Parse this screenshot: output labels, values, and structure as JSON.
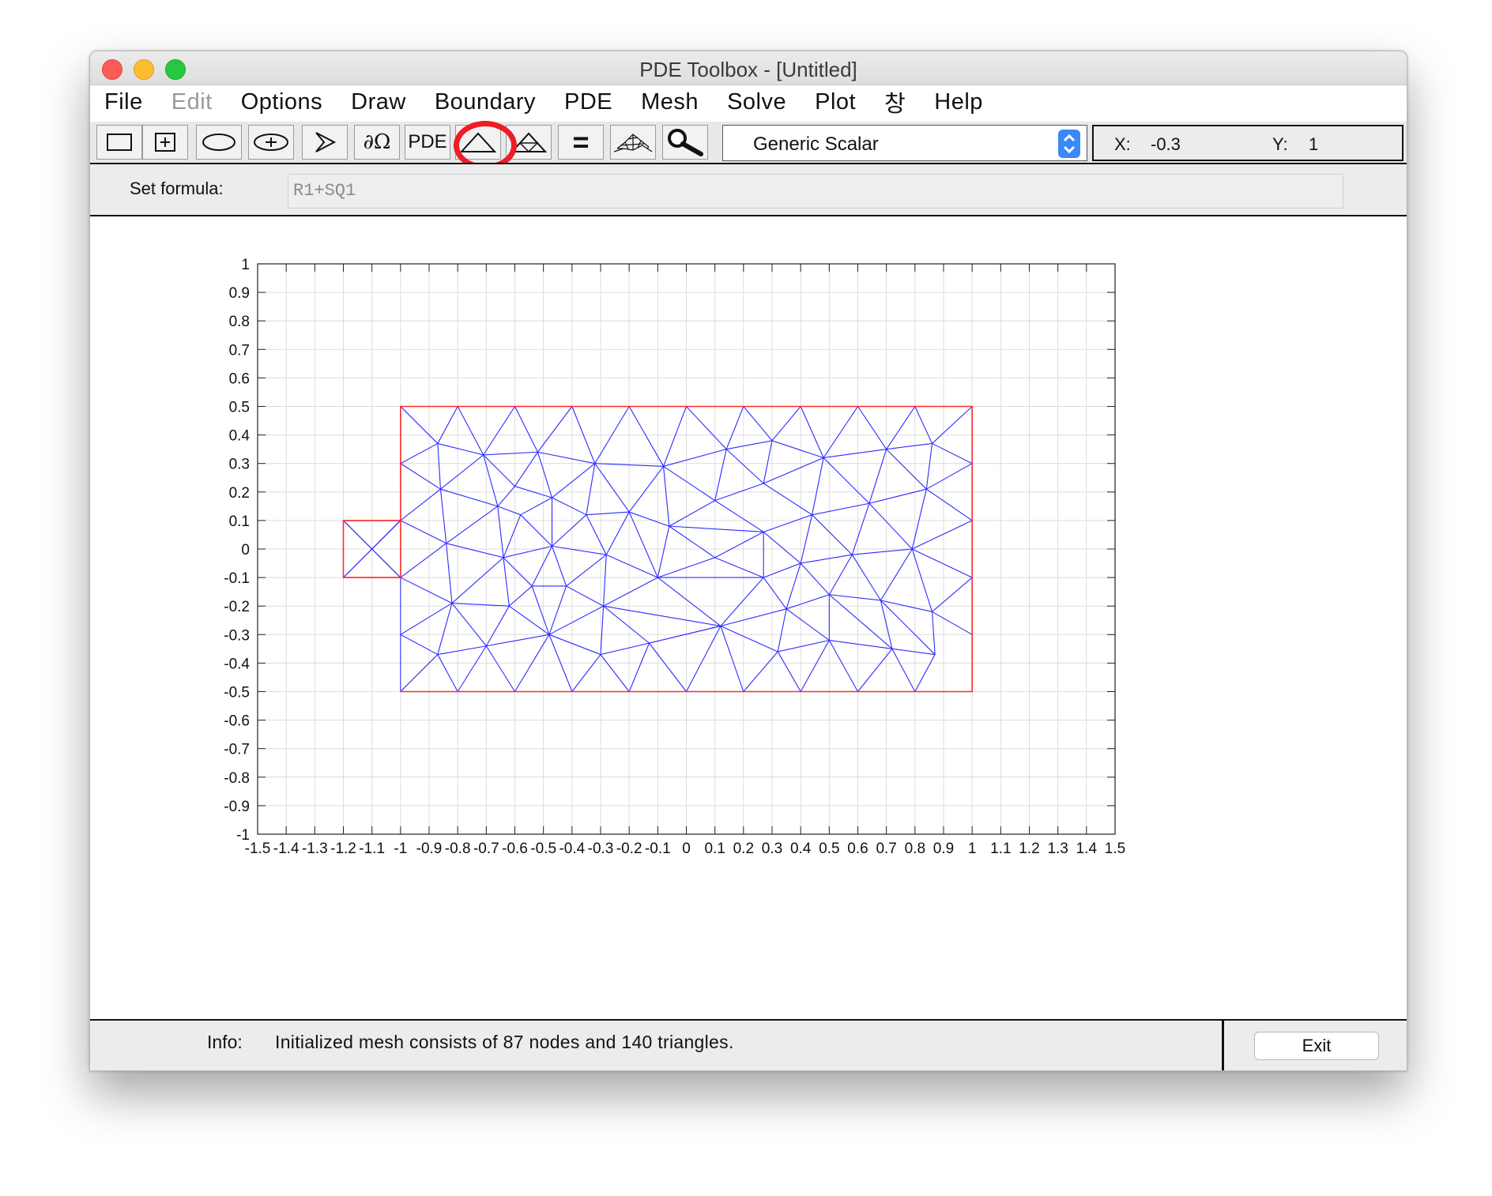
{
  "window": {
    "title": "PDE Toolbox - [Untitled]"
  },
  "menubar": {
    "items": [
      {
        "label": "File",
        "enabled": true
      },
      {
        "label": "Edit",
        "enabled": false
      },
      {
        "label": "Options",
        "enabled": true
      },
      {
        "label": "Draw",
        "enabled": true
      },
      {
        "label": "Boundary",
        "enabled": true
      },
      {
        "label": "PDE",
        "enabled": true
      },
      {
        "label": "Mesh",
        "enabled": true
      },
      {
        "label": "Solve",
        "enabled": true
      },
      {
        "label": "Plot",
        "enabled": true
      },
      {
        "label": "창",
        "enabled": true
      },
      {
        "label": "Help",
        "enabled": true
      }
    ]
  },
  "toolbar": {
    "buttons": [
      {
        "name": "rectangle-icon"
      },
      {
        "name": "centered-rectangle-icon"
      },
      {
        "name": "ellipse-icon"
      },
      {
        "name": "centered-ellipse-icon"
      },
      {
        "name": "polygon-icon"
      },
      {
        "name": "boundary-mode-icon",
        "label": "∂Ω"
      },
      {
        "name": "pde-specification-icon",
        "label": "PDE"
      },
      {
        "name": "initialize-mesh-icon"
      },
      {
        "name": "refine-mesh-icon"
      },
      {
        "name": "solve-pde-icon",
        "label": "="
      },
      {
        "name": "plot-solution-icon"
      },
      {
        "name": "zoom-icon"
      }
    ],
    "highlight_color": "#ee1c25",
    "app_mode": "Generic Scalar",
    "coords": {
      "x_label": "X:",
      "x_value": "-0.3",
      "y_label": "Y:",
      "y_value": "1"
    }
  },
  "formula": {
    "label": "Set formula:",
    "value": "R1+SQ1"
  },
  "status": {
    "info_label": "Info:",
    "info_text": "Initialized mesh consists of 87 nodes and 140 triangles.",
    "exit_label": "Exit"
  },
  "chart_data": {
    "type": "mesh",
    "xlim": [
      -1.5,
      1.5
    ],
    "ylim": [
      -1,
      1
    ],
    "grid": true,
    "xticks": [
      "-1.5",
      "-1.4",
      "-1.3",
      "-1.2",
      "-1.1",
      "-1",
      "-0.9",
      "-0.8",
      "-0.7",
      "-0.6",
      "-0.5",
      "-0.4",
      "-0.3",
      "-0.2",
      "-0.1",
      "0",
      "0.1",
      "0.2",
      "0.3",
      "0.4",
      "0.5",
      "0.6",
      "0.7",
      "0.8",
      "0.9",
      "1",
      "1.1",
      "1.2",
      "1.3",
      "1.4",
      "1.5"
    ],
    "yticks": [
      "1",
      "0.9",
      "0.8",
      "0.7",
      "0.6",
      "0.5",
      "0.4",
      "0.3",
      "0.2",
      "0.1",
      "0",
      "-0.1",
      "-0.2",
      "-0.3",
      "-0.4",
      "-0.5",
      "-0.6",
      "-0.7",
      "-0.8",
      "-0.9",
      "-1"
    ],
    "mesh_color": "#2c2cff",
    "boundary_color": "#ff2a2a",
    "boundary": [
      [
        [
          -1.0,
          -0.5
        ],
        [
          1.0,
          -0.5
        ],
        [
          1.0,
          0.5
        ],
        [
          -1.0,
          0.5
        ],
        [
          -1.0,
          -0.1
        ],
        [
          -1.2,
          -0.1
        ],
        [
          -1.2,
          0.1
        ],
        [
          -1.0,
          0.1
        ],
        [
          -1.0,
          0.5
        ]
      ]
    ],
    "nodes": [
      [
        -1.0,
        0.5
      ],
      [
        -0.8,
        0.5
      ],
      [
        -0.6,
        0.5
      ],
      [
        -0.4,
        0.5
      ],
      [
        -0.2,
        0.5
      ],
      [
        0.0,
        0.5
      ],
      [
        0.2,
        0.5
      ],
      [
        0.4,
        0.5
      ],
      [
        0.6,
        0.5
      ],
      [
        0.8,
        0.5
      ],
      [
        1.0,
        0.5
      ],
      [
        -1.0,
        -0.5
      ],
      [
        -0.8,
        -0.5
      ],
      [
        -0.6,
        -0.5
      ],
      [
        -0.4,
        -0.5
      ],
      [
        -0.2,
        -0.5
      ],
      [
        0.0,
        -0.5
      ],
      [
        0.2,
        -0.5
      ],
      [
        0.4,
        -0.5
      ],
      [
        0.6,
        -0.5
      ],
      [
        0.8,
        -0.5
      ],
      [
        1.0,
        -0.5
      ],
      [
        -1.0,
        0.3
      ],
      [
        -1.0,
        0.1
      ],
      [
        -1.0,
        -0.1
      ],
      [
        -1.0,
        -0.3
      ],
      [
        1.0,
        0.3
      ],
      [
        1.0,
        0.1
      ],
      [
        1.0,
        -0.1
      ],
      [
        1.0,
        -0.3
      ],
      [
        -1.2,
        0.1
      ],
      [
        -1.2,
        -0.1
      ],
      [
        -1.1,
        0.0
      ],
      [
        -0.87,
        0.37
      ],
      [
        -0.71,
        0.33
      ],
      [
        -0.52,
        0.34
      ],
      [
        -0.32,
        0.3
      ],
      [
        -0.08,
        0.29
      ],
      [
        0.14,
        0.35
      ],
      [
        0.3,
        0.38
      ],
      [
        0.48,
        0.32
      ],
      [
        0.7,
        0.35
      ],
      [
        0.86,
        0.37
      ],
      [
        -0.86,
        0.21
      ],
      [
        -0.66,
        0.15
      ],
      [
        -0.6,
        0.22
      ],
      [
        -0.47,
        0.18
      ],
      [
        -0.58,
        0.12
      ],
      [
        -0.35,
        0.12
      ],
      [
        -0.2,
        0.13
      ],
      [
        -0.06,
        0.08
      ],
      [
        0.1,
        0.17
      ],
      [
        0.27,
        0.23
      ],
      [
        0.44,
        0.12
      ],
      [
        0.64,
        0.16
      ],
      [
        0.84,
        0.21
      ],
      [
        -0.84,
        0.02
      ],
      [
        -0.64,
        -0.03
      ],
      [
        -0.47,
        0.01
      ],
      [
        -0.28,
        -0.02
      ],
      [
        -0.1,
        -0.1
      ],
      [
        0.1,
        -0.03
      ],
      [
        0.27,
        -0.1
      ],
      [
        0.27,
        0.06
      ],
      [
        0.4,
        -0.05
      ],
      [
        0.58,
        -0.02
      ],
      [
        0.79,
        0.0
      ],
      [
        -0.54,
        -0.13
      ],
      [
        -0.42,
        -0.13
      ],
      [
        -0.62,
        -0.2
      ],
      [
        -0.82,
        -0.19
      ],
      [
        -0.29,
        -0.2
      ],
      [
        0.12,
        -0.27
      ],
      [
        0.35,
        -0.21
      ],
      [
        0.5,
        -0.16
      ],
      [
        0.68,
        -0.18
      ],
      [
        0.86,
        -0.22
      ],
      [
        -0.87,
        -0.37
      ],
      [
        -0.7,
        -0.34
      ],
      [
        -0.48,
        -0.3
      ],
      [
        -0.3,
        -0.37
      ],
      [
        -0.13,
        -0.33
      ],
      [
        0.32,
        -0.36
      ],
      [
        0.5,
        -0.32
      ],
      [
        0.72,
        -0.35
      ],
      [
        0.87,
        -0.37
      ]
    ],
    "edges": [
      [
        0,
        33
      ],
      [
        1,
        33
      ],
      [
        1,
        34
      ],
      [
        2,
        34
      ],
      [
        2,
        35
      ],
      [
        3,
        35
      ],
      [
        3,
        36
      ],
      [
        4,
        36
      ],
      [
        4,
        37
      ],
      [
        5,
        37
      ],
      [
        5,
        38
      ],
      [
        6,
        38
      ],
      [
        6,
        39
      ],
      [
        7,
        39
      ],
      [
        7,
        40
      ],
      [
        8,
        40
      ],
      [
        8,
        41
      ],
      [
        9,
        41
      ],
      [
        9,
        42
      ],
      [
        10,
        42
      ],
      [
        10,
        26
      ],
      [
        42,
        26
      ],
      [
        42,
        41
      ],
      [
        41,
        40
      ],
      [
        40,
        39
      ],
      [
        39,
        38
      ],
      [
        38,
        37
      ],
      [
        37,
        36
      ],
      [
        36,
        35
      ],
      [
        35,
        34
      ],
      [
        34,
        33
      ],
      [
        33,
        22
      ],
      [
        22,
        43
      ],
      [
        33,
        43
      ],
      [
        43,
        34
      ],
      [
        43,
        44
      ],
      [
        34,
        44
      ],
      [
        34,
        45
      ],
      [
        35,
        45
      ],
      [
        45,
        44
      ],
      [
        45,
        46
      ],
      [
        35,
        46
      ],
      [
        46,
        36
      ],
      [
        46,
        47
      ],
      [
        47,
        44
      ],
      [
        46,
        48
      ],
      [
        36,
        48
      ],
      [
        48,
        49
      ],
      [
        36,
        49
      ],
      [
        49,
        37
      ],
      [
        37,
        50
      ],
      [
        49,
        50
      ],
      [
        50,
        51
      ],
      [
        37,
        51
      ],
      [
        51,
        38
      ],
      [
        51,
        52
      ],
      [
        38,
        52
      ],
      [
        52,
        39
      ],
      [
        52,
        40
      ],
      [
        52,
        53
      ],
      [
        40,
        53
      ],
      [
        53,
        54
      ],
      [
        40,
        54
      ],
      [
        54,
        41
      ],
      [
        54,
        55
      ],
      [
        41,
        55
      ],
      [
        55,
        42
      ],
      [
        55,
        26
      ],
      [
        26,
        27
      ],
      [
        55,
        27
      ],
      [
        55,
        66
      ],
      [
        27,
        66
      ],
      [
        66,
        54
      ],
      [
        66,
        65
      ],
      [
        65,
        54
      ],
      [
        65,
        53
      ],
      [
        65,
        64
      ],
      [
        64,
        53
      ],
      [
        64,
        63
      ],
      [
        63,
        53
      ],
      [
        63,
        51
      ],
      [
        63,
        50
      ],
      [
        63,
        61
      ],
      [
        61,
        50
      ],
      [
        61,
        62
      ],
      [
        62,
        64
      ],
      [
        62,
        63
      ],
      [
        61,
        60
      ],
      [
        60,
        50
      ],
      [
        60,
        49
      ],
      [
        60,
        59
      ],
      [
        59,
        49
      ],
      [
        59,
        48
      ],
      [
        59,
        58
      ],
      [
        58,
        48
      ],
      [
        58,
        46
      ],
      [
        58,
        47
      ],
      [
        47,
        57
      ],
      [
        57,
        58
      ],
      [
        57,
        44
      ],
      [
        57,
        56
      ],
      [
        56,
        44
      ],
      [
        56,
        43
      ],
      [
        56,
        23
      ],
      [
        23,
        43
      ],
      [
        23,
        22
      ],
      [
        23,
        32
      ],
      [
        32,
        30
      ],
      [
        32,
        31
      ],
      [
        30,
        23
      ],
      [
        31,
        24
      ],
      [
        32,
        24
      ],
      [
        32,
        23
      ],
      [
        56,
        24
      ],
      [
        24,
        70
      ],
      [
        56,
        70
      ],
      [
        70,
        57
      ],
      [
        70,
        69
      ],
      [
        69,
        57
      ],
      [
        69,
        67
      ],
      [
        67,
        57
      ],
      [
        67,
        58
      ],
      [
        67,
        68
      ],
      [
        68,
        58
      ],
      [
        68,
        59
      ],
      [
        59,
        71
      ],
      [
        68,
        71
      ],
      [
        71,
        60
      ],
      [
        60,
        72
      ],
      [
        71,
        72
      ],
      [
        72,
        62
      ],
      [
        62,
        60
      ],
      [
        72,
        73
      ],
      [
        73,
        62
      ],
      [
        73,
        64
      ],
      [
        73,
        74
      ],
      [
        74,
        64
      ],
      [
        74,
        65
      ],
      [
        74,
        75
      ],
      [
        75,
        65
      ],
      [
        75,
        66
      ],
      [
        75,
        76
      ],
      [
        76,
        66
      ],
      [
        76,
        28
      ],
      [
        66,
        28
      ],
      [
        28,
        27
      ],
      [
        76,
        29
      ],
      [
        29,
        28
      ],
      [
        70,
        25
      ],
      [
        24,
        25
      ],
      [
        25,
        77
      ],
      [
        70,
        77
      ],
      [
        77,
        78
      ],
      [
        70,
        78
      ],
      [
        78,
        69
      ],
      [
        69,
        79
      ],
      [
        78,
        79
      ],
      [
        79,
        67
      ],
      [
        79,
        68
      ],
      [
        79,
        71
      ],
      [
        79,
        80
      ],
      [
        80,
        71
      ],
      [
        71,
        81
      ],
      [
        80,
        81
      ],
      [
        81,
        72
      ],
      [
        81,
        72
      ],
      [
        72,
        82
      ],
      [
        82,
        73
      ],
      [
        73,
        83
      ],
      [
        82,
        83
      ],
      [
        83,
        74
      ],
      [
        83,
        84
      ],
      [
        84,
        74
      ],
      [
        84,
        75
      ],
      [
        84,
        85
      ],
      [
        85,
        75
      ],
      [
        85,
        76
      ],
      [
        85,
        86
      ],
      [
        86,
        76
      ],
      [
        86,
        29
      ],
      [
        86,
        21
      ],
      [
        29,
        21
      ],
      [
        11,
        25
      ],
      [
        11,
        77
      ],
      [
        12,
        77
      ],
      [
        12,
        78
      ],
      [
        13,
        78
      ],
      [
        13,
        79
      ],
      [
        14,
        79
      ],
      [
        14,
        80
      ],
      [
        15,
        80
      ],
      [
        15,
        81
      ],
      [
        16,
        81
      ],
      [
        16,
        72
      ],
      [
        17,
        72
      ],
      [
        17,
        82
      ],
      [
        18,
        82
      ],
      [
        18,
        83
      ],
      [
        19,
        83
      ],
      [
        19,
        84
      ],
      [
        20,
        84
      ],
      [
        20,
        86
      ],
      [
        20,
        85
      ],
      [
        21,
        86
      ]
    ]
  }
}
